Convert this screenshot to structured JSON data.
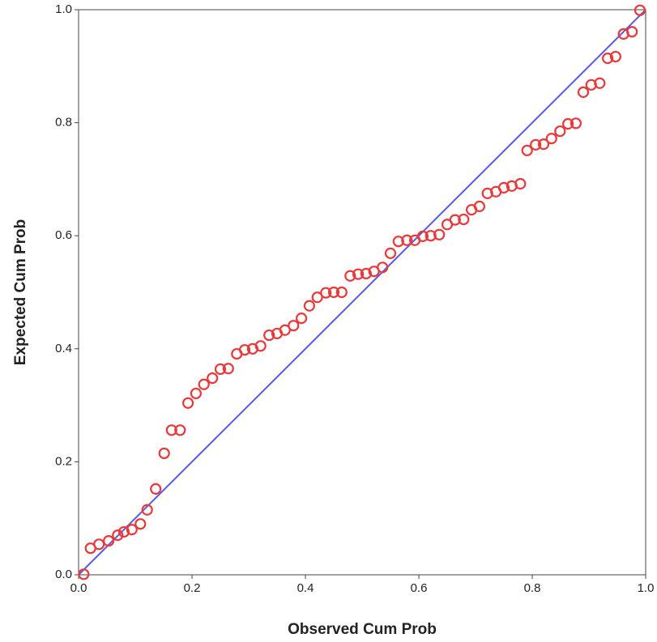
{
  "chart_data": {
    "type": "scatter",
    "x_label": "Observed Cum Prob",
    "y_label": "Expected Cum Prob",
    "marker_color": "#e8393b",
    "reference_line_color": "#5a5ae8",
    "xlim": [
      0,
      1
    ],
    "ylim": [
      0,
      1
    ],
    "xticks": [
      {
        "value": 0,
        "label": "0.0"
      },
      0.2,
      0.4,
      0.6,
      0.8,
      {
        "value": 1,
        "label": "1.0"
      }
    ],
    "yticks": [
      {
        "value": 0,
        "label": "0.0"
      },
      0.2,
      0.4,
      0.6,
      0.8,
      {
        "value": 1,
        "label": "1.0"
      }
    ],
    "x": [
      0.009,
      0.021,
      0.036,
      0.053,
      0.069,
      0.08,
      0.094,
      0.109,
      0.121,
      0.136,
      0.151,
      0.164,
      0.179,
      0.193,
      0.207,
      0.221,
      0.236,
      0.25,
      0.264,
      0.279,
      0.293,
      0.307,
      0.321,
      0.336,
      0.35,
      0.364,
      0.379,
      0.393,
      0.407,
      0.421,
      0.436,
      0.45,
      0.464,
      0.479,
      0.493,
      0.507,
      0.521,
      0.536,
      0.55,
      0.564,
      0.579,
      0.593,
      0.607,
      0.621,
      0.636,
      0.65,
      0.664,
      0.679,
      0.693,
      0.707,
      0.721,
      0.736,
      0.75,
      0.764,
      0.779,
      0.791,
      0.806,
      0.82,
      0.834,
      0.849,
      0.863,
      0.877,
      0.89,
      0.904,
      0.919,
      0.933,
      0.947,
      0.961,
      0.976,
      0.99
    ],
    "y": [
      0.001,
      0.047,
      0.054,
      0.06,
      0.07,
      0.076,
      0.08,
      0.09,
      0.115,
      0.152,
      0.215,
      0.256,
      0.256,
      0.304,
      0.321,
      0.337,
      0.348,
      0.364,
      0.365,
      0.391,
      0.398,
      0.4,
      0.405,
      0.424,
      0.427,
      0.433,
      0.441,
      0.454,
      0.476,
      0.491,
      0.499,
      0.5,
      0.5,
      0.529,
      0.532,
      0.533,
      0.537,
      0.544,
      0.569,
      0.59,
      0.592,
      0.592,
      0.599,
      0.6,
      0.602,
      0.62,
      0.628,
      0.629,
      0.646,
      0.652,
      0.675,
      0.678,
      0.685,
      0.688,
      0.692,
      0.751,
      0.761,
      0.762,
      0.772,
      0.785,
      0.798,
      0.799,
      0.854,
      0.867,
      0.87,
      0.914,
      0.917,
      0.957,
      0.961,
      0.999
    ]
  }
}
